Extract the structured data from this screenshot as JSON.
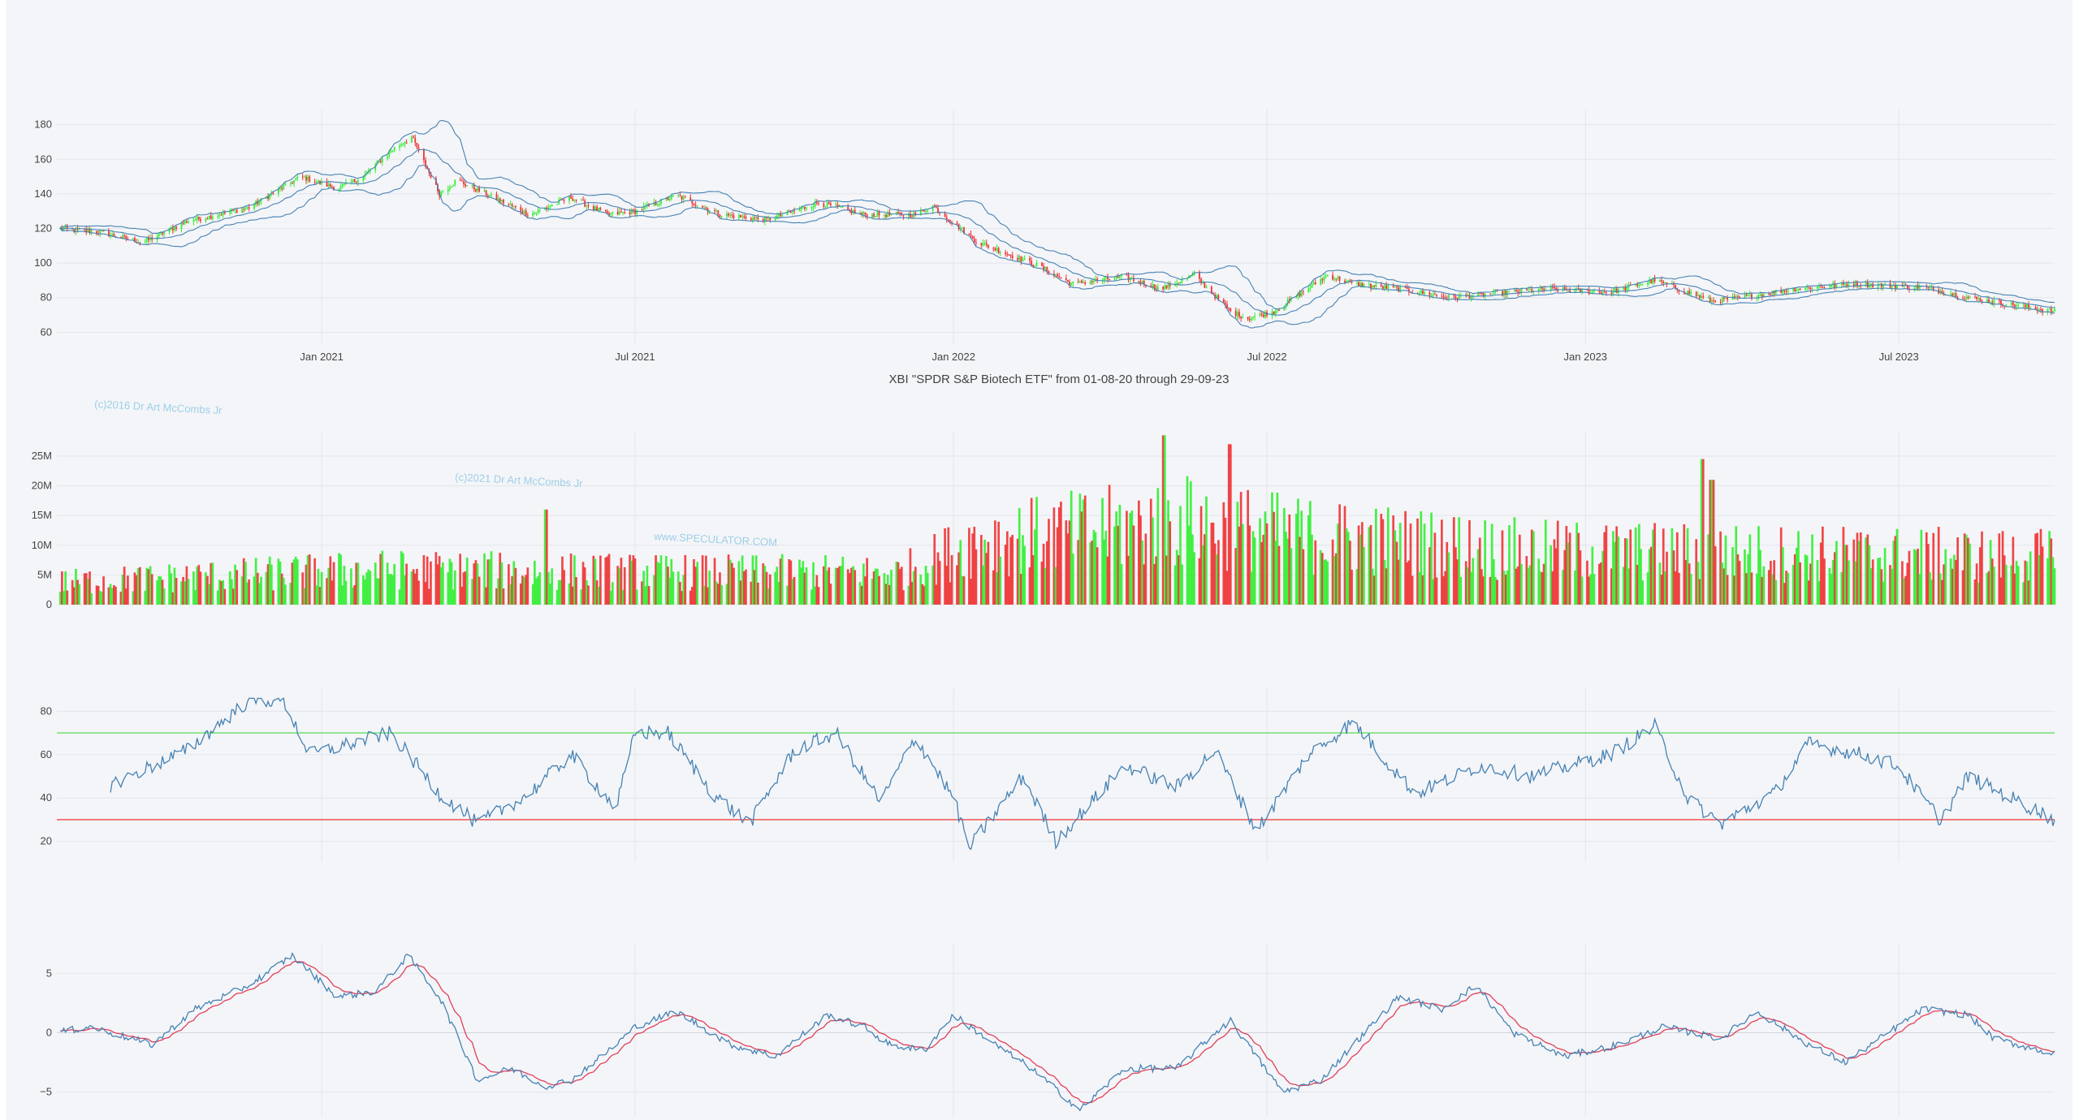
{
  "title": "XBI \"SPDR S&P Biotech ETF\" from 01-08-20 through 29-09-23",
  "watermarks": [
    "(c)2016 Dr Art McCombs Jr",
    "(c)2021 Dr Art McCombs Jr",
    "www.SPECULATOR.COM"
  ],
  "colors": {
    "up": "#33ee33",
    "down": "#ee3333",
    "line": "#4682b4",
    "signal": "#e0405a",
    "overbought": "#66dd66",
    "oversold": "#ee4444",
    "grid": "#e2e5ec"
  },
  "chart_data": [
    {
      "type": "candlestick",
      "panel": "price",
      "x_tick_labels": [
        "Jan 2021",
        "Jul 2021",
        "Jan 2022",
        "Jul 2022",
        "Jan 2023",
        "Jul 2023"
      ],
      "x_range": [
        "2020-08-01",
        "2023-09-29"
      ],
      "y_ticks": [
        60,
        80,
        100,
        120,
        140,
        160,
        180
      ],
      "ylim": [
        55,
        185
      ],
      "overlays": [
        "bollinger_upper",
        "bollinger_middle",
        "bollinger_lower"
      ],
      "close_anchors": [
        [
          "2020-08-01",
          120
        ],
        [
          "2020-08-25",
          118
        ],
        [
          "2020-09-20",
          112
        ],
        [
          "2020-10-15",
          124
        ],
        [
          "2020-11-20",
          132
        ],
        [
          "2020-12-20",
          150
        ],
        [
          "2021-01-10",
          143
        ],
        [
          "2021-01-25",
          150
        ],
        [
          "2021-02-10",
          165
        ],
        [
          "2021-02-22",
          173
        ],
        [
          "2021-03-10",
          140
        ],
        [
          "2021-03-20",
          148
        ],
        [
          "2021-04-10",
          138
        ],
        [
          "2021-05-01",
          128
        ],
        [
          "2021-05-25",
          138
        ],
        [
          "2021-06-15",
          128
        ],
        [
          "2021-07-01",
          130
        ],
        [
          "2021-07-25",
          139
        ],
        [
          "2021-08-20",
          128
        ],
        [
          "2021-09-15",
          125
        ],
        [
          "2021-10-01",
          130
        ],
        [
          "2021-10-15",
          135
        ],
        [
          "2021-11-10",
          128
        ],
        [
          "2021-12-10",
          128
        ],
        [
          "2021-12-20",
          133
        ],
        [
          "2022-01-15",
          112
        ],
        [
          "2022-02-20",
          98
        ],
        [
          "2022-03-10",
          88
        ],
        [
          "2022-04-10",
          92
        ],
        [
          "2022-05-01",
          85
        ],
        [
          "2022-05-20",
          93
        ],
        [
          "2022-06-10",
          72
        ],
        [
          "2022-06-20",
          68
        ],
        [
          "2022-07-05",
          72
        ],
        [
          "2022-08-05",
          93
        ],
        [
          "2022-08-20",
          88
        ],
        [
          "2022-09-15",
          85
        ],
        [
          "2022-10-15",
          80
        ],
        [
          "2022-12-10",
          85
        ],
        [
          "2023-01-15",
          83
        ],
        [
          "2023-02-10",
          90
        ],
        [
          "2023-03-15",
          78
        ],
        [
          "2023-04-01",
          80
        ],
        [
          "2023-05-01",
          85
        ],
        [
          "2023-06-05",
          88
        ],
        [
          "2023-07-15",
          86
        ],
        [
          "2023-08-10",
          80
        ],
        [
          "2023-09-29",
          72
        ]
      ]
    },
    {
      "type": "bar",
      "panel": "volume",
      "y_tick_labels": [
        "0",
        "5M",
        "10M",
        "15M",
        "20M",
        "25M"
      ],
      "y_ticks": [
        0,
        5,
        10,
        15,
        20,
        25
      ],
      "ylim": [
        0,
        28
      ],
      "unit": "millions of shares",
      "level_anchors": [
        [
          "2020-08-01",
          3.5
        ],
        [
          "2021-02-01",
          5.5
        ],
        [
          "2021-08-01",
          5
        ],
        [
          "2021-12-01",
          5
        ],
        [
          "2022-01-15",
          10
        ],
        [
          "2022-05-15",
          13
        ],
        [
          "2022-07-15",
          11
        ],
        [
          "2022-12-01",
          8.5
        ],
        [
          "2023-09-29",
          7.5
        ]
      ],
      "spikes": [
        [
          "2021-05-10",
          16
        ],
        [
          "2022-05-02",
          28.5
        ],
        [
          "2022-06-10",
          27
        ],
        [
          "2023-03-10",
          24.5
        ],
        [
          "2023-03-15",
          21
        ]
      ]
    },
    {
      "type": "line",
      "panel": "rsi",
      "y_ticks": [
        20,
        40,
        60,
        80
      ],
      "ylim": [
        12,
        88
      ],
      "reference_lines": [
        70,
        30
      ],
      "anchors": [
        [
          "2020-09-01",
          46
        ],
        [
          "2020-10-15",
          62
        ],
        [
          "2020-11-20",
          85
        ],
        [
          "2020-12-10",
          85
        ],
        [
          "2020-12-25",
          60
        ],
        [
          "2021-02-10",
          70
        ],
        [
          "2021-03-10",
          42
        ],
        [
          "2021-04-01",
          28
        ],
        [
          "2021-05-01",
          42
        ],
        [
          "2021-05-25",
          60
        ],
        [
          "2021-06-20",
          35
        ],
        [
          "2021-07-01",
          70
        ],
        [
          "2021-07-20",
          70
        ],
        [
          "2021-08-15",
          42
        ],
        [
          "2021-09-05",
          28
        ],
        [
          "2021-10-01",
          62
        ],
        [
          "2021-10-25",
          70
        ],
        [
          "2021-11-20",
          38
        ],
        [
          "2021-12-10",
          68
        ],
        [
          "2022-01-01",
          40
        ],
        [
          "2022-01-10",
          17
        ],
        [
          "2022-02-10",
          50
        ],
        [
          "2022-03-01",
          20
        ],
        [
          "2022-04-10",
          55
        ],
        [
          "2022-05-10",
          45
        ],
        [
          "2022-06-01",
          62
        ],
        [
          "2022-06-25",
          25
        ],
        [
          "2022-07-25",
          60
        ],
        [
          "2022-08-20",
          75
        ],
        [
          "2022-09-10",
          55
        ],
        [
          "2022-09-25",
          42
        ],
        [
          "2022-11-01",
          55
        ],
        [
          "2022-12-01",
          50
        ],
        [
          "2023-01-15",
          60
        ],
        [
          "2023-02-10",
          73
        ],
        [
          "2023-03-01",
          40
        ],
        [
          "2023-03-20",
          28
        ],
        [
          "2023-04-20",
          42
        ],
        [
          "2023-05-10",
          65
        ],
        [
          "2023-06-10",
          60
        ],
        [
          "2023-06-30",
          55
        ],
        [
          "2023-07-25",
          30
        ],
        [
          "2023-08-10",
          50
        ],
        [
          "2023-09-29",
          30
        ]
      ]
    },
    {
      "type": "line",
      "panel": "oscillator",
      "y_ticks": [
        -5,
        0,
        5
      ],
      "y_tick_labels": [
        "−5",
        "0",
        "5"
      ],
      "ylim": [
        -6.8,
        7
      ],
      "series_colors": [
        "#4682b4",
        "#e0405a"
      ],
      "anchors": [
        [
          "2020-08-01",
          0
        ],
        [
          "2020-08-20",
          0.5
        ],
        [
          "2020-09-25",
          -1
        ],
        [
          "2020-10-20",
          2
        ],
        [
          "2020-11-20",
          4
        ],
        [
          "2020-12-15",
          6.5
        ],
        [
          "2021-01-10",
          3
        ],
        [
          "2021-02-01",
          3.5
        ],
        [
          "2021-02-20",
          6.5
        ],
        [
          "2021-03-10",
          3
        ],
        [
          "2021-04-01",
          -4
        ],
        [
          "2021-04-20",
          -3
        ],
        [
          "2021-05-10",
          -4.5
        ],
        [
          "2021-05-25",
          -4
        ],
        [
          "2021-06-20",
          -1
        ],
        [
          "2021-07-01",
          0.5
        ],
        [
          "2021-07-25",
          1.8
        ],
        [
          "2021-08-25",
          -1
        ],
        [
          "2021-09-20",
          -2
        ],
        [
          "2021-10-20",
          1.5
        ],
        [
          "2021-11-10",
          0.5
        ],
        [
          "2021-11-25",
          -1
        ],
        [
          "2021-12-15",
          -1.5
        ],
        [
          "2022-01-01",
          1.5
        ],
        [
          "2022-01-25",
          -1
        ],
        [
          "2022-02-15",
          -3
        ],
        [
          "2022-03-15",
          -6.5
        ],
        [
          "2022-04-10",
          -3
        ],
        [
          "2022-05-10",
          -3
        ],
        [
          "2022-06-01",
          0
        ],
        [
          "2022-06-10",
          1
        ],
        [
          "2022-07-10",
          -5
        ],
        [
          "2022-08-01",
          -4
        ],
        [
          "2022-08-20",
          -1
        ],
        [
          "2022-09-15",
          3
        ],
        [
          "2022-10-10",
          2
        ],
        [
          "2022-10-30",
          4
        ],
        [
          "2022-11-20",
          0
        ],
        [
          "2022-12-20",
          -2
        ],
        [
          "2023-01-20",
          -1
        ],
        [
          "2023-02-15",
          0.5
        ],
        [
          "2023-03-20",
          -0.5
        ],
        [
          "2023-04-10",
          1.8
        ],
        [
          "2023-05-10",
          -1
        ],
        [
          "2023-05-31",
          -2.5
        ],
        [
          "2023-06-25",
          0
        ],
        [
          "2023-07-15",
          2
        ],
        [
          "2023-08-10",
          1.5
        ],
        [
          "2023-08-25",
          -0.5
        ],
        [
          "2023-09-29",
          -1.8
        ]
      ]
    }
  ]
}
